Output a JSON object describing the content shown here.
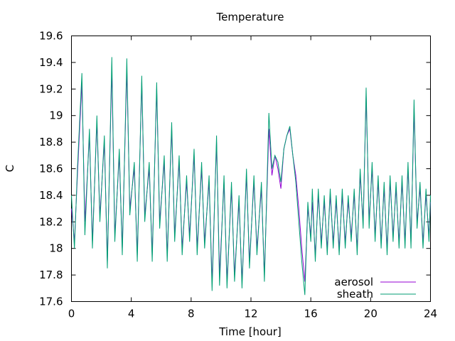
{
  "chart_data": {
    "type": "line",
    "title": "Temperature",
    "xlabel": "Time [hour]",
    "ylabel": "C",
    "xlim": [
      0,
      24
    ],
    "ylim": [
      17.6,
      19.6
    ],
    "xticks": [
      "0",
      "4",
      "8",
      "12",
      "16",
      "20",
      "24"
    ],
    "yticks": [
      "17.6",
      "17.8",
      "18",
      "18.2",
      "18.4",
      "18.6",
      "18.8",
      "19",
      "19.2",
      "19.4",
      "19.6"
    ],
    "grid": false,
    "legend_position": "bottom-right",
    "series": [
      {
        "name": "aerosol",
        "color": "#9400d3",
        "x": [
          0,
          0.2,
          0.4,
          0.7,
          0.9,
          1.2,
          1.4,
          1.7,
          1.9,
          2.2,
          2.4,
          2.7,
          2.9,
          3.2,
          3.4,
          3.7,
          3.9,
          4.2,
          4.4,
          4.7,
          4.9,
          5.2,
          5.4,
          5.7,
          5.9,
          6.2,
          6.4,
          6.7,
          6.9,
          7.2,
          7.4,
          7.7,
          7.9,
          8.2,
          8.4,
          8.7,
          8.9,
          9.2,
          9.4,
          9.7,
          9.9,
          10.2,
          10.4,
          10.7,
          10.9,
          11.2,
          11.4,
          11.7,
          11.9,
          12.2,
          12.4,
          12.7,
          12.9,
          13.2,
          13.4,
          13.6,
          13.8,
          14.0,
          14.2,
          14.4,
          14.6,
          14.8,
          15.0,
          15.2,
          15.4,
          15.6,
          15.8,
          16.0,
          16.1,
          16.3,
          16.5,
          16.7,
          16.9,
          17.1,
          17.3,
          17.5,
          17.7,
          17.9,
          18.1,
          18.3,
          18.5,
          18.7,
          18.9,
          19.1,
          19.3,
          19.5,
          19.7,
          19.9,
          20.1,
          20.3,
          20.5,
          20.7,
          20.9,
          21.1,
          21.3,
          21.5,
          21.7,
          21.9,
          22.1,
          22.3,
          22.5,
          22.7,
          22.9,
          23.1,
          23.3,
          23.5,
          23.7,
          23.9,
          24
        ],
        "y": [
          18.3,
          18.05,
          18.55,
          19.25,
          18.2,
          18.85,
          18.05,
          18.95,
          18.25,
          18.8,
          17.9,
          19.35,
          18.1,
          18.7,
          18.0,
          19.35,
          18.3,
          18.6,
          17.95,
          19.25,
          18.25,
          18.6,
          17.95,
          19.2,
          18.2,
          18.65,
          17.95,
          18.9,
          18.1,
          18.65,
          18.0,
          18.5,
          18.1,
          18.7,
          18.0,
          18.6,
          18.05,
          18.5,
          17.75,
          18.8,
          17.8,
          18.5,
          17.75,
          18.45,
          17.8,
          18.35,
          17.75,
          18.55,
          17.9,
          18.5,
          18.0,
          18.45,
          17.8,
          18.9,
          18.55,
          18.7,
          18.6,
          18.45,
          18.75,
          18.85,
          18.9,
          18.7,
          18.55,
          18.3,
          18.0,
          17.75,
          18.3,
          18.1,
          18.35,
          17.95,
          18.4,
          18.05,
          18.35,
          18.0,
          18.4,
          18.05,
          18.35,
          18.0,
          18.4,
          18.05,
          18.35,
          18.1,
          18.4,
          18.0,
          18.55,
          18.2,
          19.15,
          18.2,
          18.6,
          18.1,
          18.5,
          18.05,
          18.45,
          18.0,
          18.5,
          18.1,
          18.45,
          18.05,
          18.5,
          18.05,
          18.6,
          18.05,
          19.05,
          18.2,
          18.45,
          18.05,
          18.4,
          18.1,
          18.35
        ]
      },
      {
        "name": "sheath",
        "color": "#009e73",
        "x": [
          0,
          0.2,
          0.4,
          0.7,
          0.9,
          1.2,
          1.4,
          1.7,
          1.9,
          2.2,
          2.4,
          2.7,
          2.9,
          3.2,
          3.4,
          3.7,
          3.9,
          4.2,
          4.4,
          4.7,
          4.9,
          5.2,
          5.4,
          5.7,
          5.9,
          6.2,
          6.4,
          6.7,
          6.9,
          7.2,
          7.4,
          7.7,
          7.9,
          8.2,
          8.4,
          8.7,
          8.9,
          9.2,
          9.4,
          9.7,
          9.9,
          10.2,
          10.4,
          10.7,
          10.9,
          11.2,
          11.4,
          11.7,
          11.9,
          12.2,
          12.4,
          12.7,
          12.9,
          13.2,
          13.4,
          13.6,
          13.8,
          14.0,
          14.2,
          14.4,
          14.6,
          14.8,
          15.0,
          15.2,
          15.4,
          15.6,
          15.8,
          16.0,
          16.1,
          16.3,
          16.5,
          16.7,
          16.9,
          17.1,
          17.3,
          17.5,
          17.7,
          17.9,
          18.1,
          18.3,
          18.5,
          18.7,
          18.9,
          19.1,
          19.3,
          19.5,
          19.7,
          19.9,
          20.1,
          20.3,
          20.5,
          20.7,
          20.9,
          21.1,
          21.3,
          21.5,
          21.7,
          21.9,
          22.1,
          22.3,
          22.5,
          22.7,
          22.9,
          23.1,
          23.3,
          23.5,
          23.7,
          23.9,
          24
        ],
        "y": [
          18.4,
          18.0,
          18.6,
          19.32,
          18.1,
          18.9,
          18.0,
          19.0,
          18.2,
          18.85,
          17.85,
          19.44,
          18.05,
          18.75,
          17.95,
          19.43,
          18.25,
          18.65,
          17.9,
          19.3,
          18.2,
          18.65,
          17.9,
          19.25,
          18.15,
          18.7,
          17.9,
          18.95,
          18.05,
          18.7,
          17.95,
          18.55,
          18.05,
          18.75,
          17.95,
          18.65,
          18.0,
          18.55,
          17.68,
          18.85,
          17.72,
          18.55,
          17.7,
          18.5,
          17.75,
          18.4,
          17.7,
          18.6,
          17.85,
          18.55,
          17.95,
          18.5,
          17.75,
          19.02,
          18.6,
          18.7,
          18.65,
          18.5,
          18.75,
          18.85,
          18.92,
          18.7,
          18.5,
          18.2,
          17.9,
          17.65,
          18.35,
          18.05,
          18.45,
          17.9,
          18.45,
          18.0,
          18.4,
          17.95,
          18.45,
          18.0,
          18.4,
          17.95,
          18.45,
          18.0,
          18.4,
          18.05,
          18.45,
          17.95,
          18.6,
          18.15,
          19.21,
          18.15,
          18.65,
          18.05,
          18.55,
          18.0,
          18.5,
          17.95,
          18.55,
          18.05,
          18.5,
          18.0,
          18.55,
          18.0,
          18.65,
          18.0,
          19.12,
          18.15,
          18.5,
          18.0,
          18.45,
          18.05,
          18.4
        ]
      }
    ]
  }
}
